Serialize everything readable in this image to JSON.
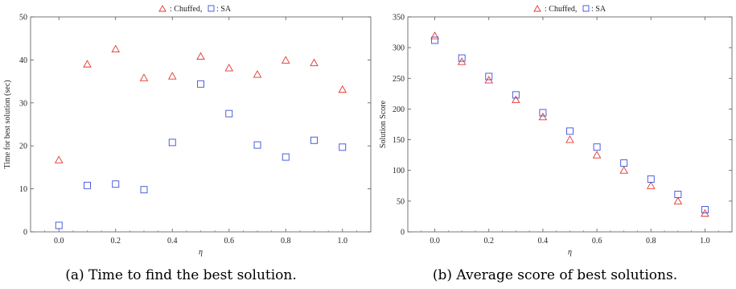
{
  "figure": {
    "captions": [
      "(a) Time to find the best solution.",
      "(b) Average score of best solutions."
    ]
  },
  "chart_data": [
    {
      "type": "scatter",
      "title": "",
      "xlabel": "η",
      "ylabel": "Time for best solution (sec)",
      "xlim": [
        -0.1,
        1.1
      ],
      "ylim": [
        0,
        50
      ],
      "xticks": [
        "0.0",
        "0.2",
        "0.4",
        "0.6",
        "0.8",
        "1.0"
      ],
      "xtick_values": [
        0.0,
        0.2,
        0.4,
        0.6,
        0.8,
        1.0
      ],
      "yticks": [
        "0",
        "10",
        "20",
        "30",
        "40",
        "50"
      ],
      "ytick_values": [
        0,
        10,
        20,
        30,
        40,
        50
      ],
      "legend": {
        "position": "top-center",
        "entries": [
          ": Chuffed,",
          ": SA"
        ]
      },
      "x": [
        0.0,
        0.1,
        0.2,
        0.3,
        0.4,
        0.5,
        0.6,
        0.7,
        0.8,
        0.9,
        1.0
      ],
      "series": [
        {
          "name": "Chuffed",
          "marker": "triangle",
          "color": "#e3342f",
          "values": [
            16.7,
            39.0,
            42.5,
            35.8,
            36.2,
            40.8,
            38.1,
            36.6,
            39.9,
            39.3,
            33.1
          ]
        },
        {
          "name": "SA",
          "marker": "square",
          "color": "#3b4fd8",
          "values": [
            1.5,
            10.8,
            11.1,
            9.8,
            20.8,
            34.4,
            27.5,
            20.2,
            17.4,
            21.3,
            19.7
          ]
        }
      ]
    },
    {
      "type": "scatter",
      "title": "",
      "xlabel": "η",
      "ylabel": "Solution Score",
      "xlim": [
        -0.1,
        1.1
      ],
      "ylim": [
        0,
        350
      ],
      "xticks": [
        "0.0",
        "0.2",
        "0.4",
        "0.6",
        "0.8",
        "1.0"
      ],
      "xtick_values": [
        0.0,
        0.2,
        0.4,
        0.6,
        0.8,
        1.0
      ],
      "yticks": [
        "0",
        "50",
        "100",
        "150",
        "200",
        "250",
        "300",
        "350"
      ],
      "ytick_values": [
        0,
        50,
        100,
        150,
        200,
        250,
        300,
        350
      ],
      "legend": {
        "position": "top-center",
        "entries": [
          ": Chuffed,",
          ": SA"
        ]
      },
      "x": [
        0.0,
        0.1,
        0.2,
        0.3,
        0.4,
        0.5,
        0.6,
        0.7,
        0.8,
        0.9,
        1.0
      ],
      "series": [
        {
          "name": "Chuffed",
          "marker": "triangle",
          "color": "#e3342f",
          "values": [
            319,
            277,
            247,
            215,
            187,
            150,
            125,
            100,
            75,
            50,
            30
          ]
        },
        {
          "name": "SA",
          "marker": "square",
          "color": "#3b4fd8",
          "values": [
            312,
            283,
            253,
            223,
            194,
            164,
            138,
            112,
            86,
            61,
            36
          ]
        }
      ]
    }
  ]
}
